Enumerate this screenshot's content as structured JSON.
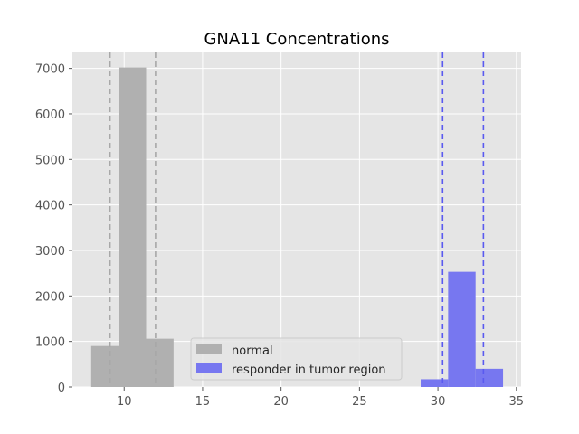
{
  "chart_data": {
    "type": "histogram",
    "title": "GNA11 Concentrations",
    "xlabel": "",
    "ylabel": "",
    "xlim": [
      6.7,
      35.3
    ],
    "ylim": [
      0,
      7350
    ],
    "xticks": [
      10,
      15,
      20,
      25,
      30,
      35
    ],
    "yticks": [
      0,
      1000,
      2000,
      3000,
      4000,
      5000,
      6000,
      7000
    ],
    "grid": true,
    "legend_position": "lower-center",
    "series": [
      {
        "name": "normal",
        "color": "#b0b0b0",
        "bins": [
          {
            "x0": 7.9,
            "x1": 9.65,
            "count": 900
          },
          {
            "x0": 9.65,
            "x1": 11.4,
            "count": 7020
          },
          {
            "x0": 11.4,
            "x1": 13.15,
            "count": 1060
          }
        ],
        "reference_lines": [
          9.1,
          12.0
        ],
        "reference_line_color": "#a8a8a8"
      },
      {
        "name": "responder in tumor region",
        "color": "#7777f0",
        "bins": [
          {
            "x0": 28.9,
            "x1": 30.65,
            "count": 170
          },
          {
            "x0": 30.65,
            "x1": 32.4,
            "count": 2530
          },
          {
            "x0": 32.4,
            "x1": 34.15,
            "count": 400
          }
        ],
        "reference_lines": [
          30.3,
          32.9
        ],
        "reference_line_color": "#5a5af0"
      }
    ]
  }
}
